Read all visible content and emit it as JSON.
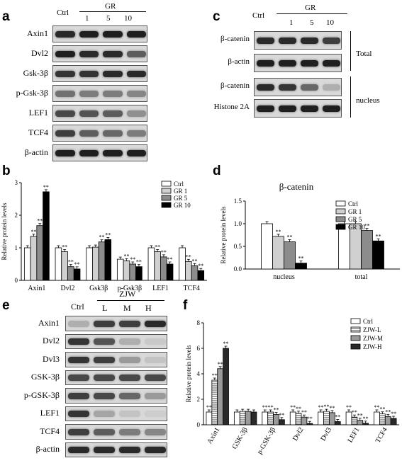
{
  "panels": {
    "a": {
      "letter": "a",
      "col_header_ctrl": "Ctrl",
      "col_header_group": "GR",
      "doses": [
        "1",
        "5",
        "10"
      ],
      "rows": [
        "Axin1",
        "Dvl2",
        "Gsk-3β",
        "p-Gsk-3β",
        "LEF1",
        "TCF4",
        "β-actin"
      ]
    },
    "c": {
      "letter": "c",
      "col_header_ctrl": "Ctrl",
      "col_header_group": "GR",
      "doses": [
        "1",
        "5",
        "10"
      ],
      "rows": [
        "β-catenin",
        "β-actin",
        "β-catenin",
        "Histone 2A"
      ],
      "group_total": "Total",
      "group_nucleus": "nucleus"
    },
    "e": {
      "letter": "e",
      "col_header_ctrl": "Ctrl",
      "col_header_group": "ZJW",
      "doses": [
        "L",
        "M",
        "H"
      ],
      "rows": [
        "Axin1",
        "Dvl2",
        "Dvl3",
        "GSK-3β",
        "p-GSK-3β",
        "LEF1",
        "TCF4",
        "β-actin"
      ]
    },
    "b": {
      "letter": "b"
    },
    "d": {
      "letter": "d"
    },
    "f": {
      "letter": "f"
    }
  },
  "chart_data": [
    {
      "id": "b",
      "type": "bar",
      "ylabel": "Relative protein levels",
      "ylim": [
        0,
        3
      ],
      "yticks": [
        0,
        1,
        2,
        3
      ],
      "categories": [
        "Axin1",
        "Dvl2",
        "Gsk3β",
        "p-Gsk3β",
        "LEF1",
        "TCF4"
      ],
      "series": [
        {
          "name": "Ctrl",
          "values": [
            1.0,
            1.0,
            1.0,
            0.65,
            1.0,
            1.0
          ]
        },
        {
          "name": "GR 1",
          "values": [
            1.35,
            0.88,
            1.02,
            0.6,
            0.88,
            0.58
          ]
        },
        {
          "name": "GR 5",
          "values": [
            1.68,
            0.42,
            1.18,
            0.5,
            0.72,
            0.45
          ]
        },
        {
          "name": "GR 10",
          "values": [
            2.72,
            0.35,
            1.25,
            0.42,
            0.5,
            0.3
          ]
        }
      ],
      "stars": [
        [
          null,
          "**",
          "**",
          "**"
        ],
        [
          null,
          "**",
          "**",
          "**"
        ],
        [
          null,
          null,
          "**",
          "**"
        ],
        [
          null,
          "**",
          "**",
          "**"
        ],
        [
          null,
          "**",
          "**",
          "**"
        ],
        [
          null,
          "**",
          "**",
          "**"
        ]
      ],
      "legend_position": "top-right"
    },
    {
      "id": "d",
      "type": "bar",
      "title": "β-catenin",
      "ylabel": "Relative protein levels",
      "ylim": [
        0,
        1.5
      ],
      "yticks": [
        0.0,
        0.5,
        1.0,
        1.5
      ],
      "categories": [
        "nucleus",
        "total"
      ],
      "series": [
        {
          "name": "Ctrl",
          "values": [
            1.0,
            1.0
          ]
        },
        {
          "name": "GR 1",
          "values": [
            0.72,
            1.0
          ]
        },
        {
          "name": "GR 5",
          "values": [
            0.6,
            0.85
          ]
        },
        {
          "name": "GR 10",
          "values": [
            0.13,
            0.62
          ]
        }
      ],
      "stars": [
        [
          null,
          "**",
          "**",
          "**"
        ],
        [
          null,
          null,
          "**",
          "**"
        ]
      ],
      "legend_position": "top-right"
    },
    {
      "id": "f",
      "type": "bar",
      "ylabel": "Relative protein levels",
      "ylim": [
        0,
        8
      ],
      "yticks": [
        0,
        2,
        4,
        6,
        8
      ],
      "categories": [
        "Axin1",
        "GSK-3β",
        "p-GSK-3β",
        "Dvl2",
        "Dvl3",
        "LEF1",
        "TCF4"
      ],
      "series": [
        {
          "name": "Ctrl",
          "values": [
            1.0,
            1.0,
            1.0,
            1.0,
            1.0,
            1.0,
            1.0
          ]
        },
        {
          "name": "ZJW-L",
          "values": [
            3.5,
            1.05,
            1.0,
            0.9,
            1.05,
            0.6,
            0.85
          ]
        },
        {
          "name": "ZJW-M",
          "values": [
            4.4,
            1.05,
            0.8,
            0.6,
            0.95,
            0.35,
            0.65
          ]
        },
        {
          "name": "ZJW-H",
          "values": [
            6.0,
            1.0,
            0.4,
            0.1,
            0.25,
            0.12,
            0.5
          ]
        }
      ],
      "stars": [
        [
          "**",
          "**",
          "**",
          "**"
        ],
        [
          null,
          null,
          null,
          null
        ],
        [
          "**",
          "**",
          "**",
          "**"
        ],
        [
          "**",
          "**",
          "**",
          "**"
        ],
        [
          "**",
          "**",
          "**",
          "**"
        ],
        [
          "**",
          "**",
          "**",
          "**"
        ],
        [
          "**",
          "**",
          "**",
          "**"
        ]
      ],
      "legend_position": "top-right"
    }
  ]
}
